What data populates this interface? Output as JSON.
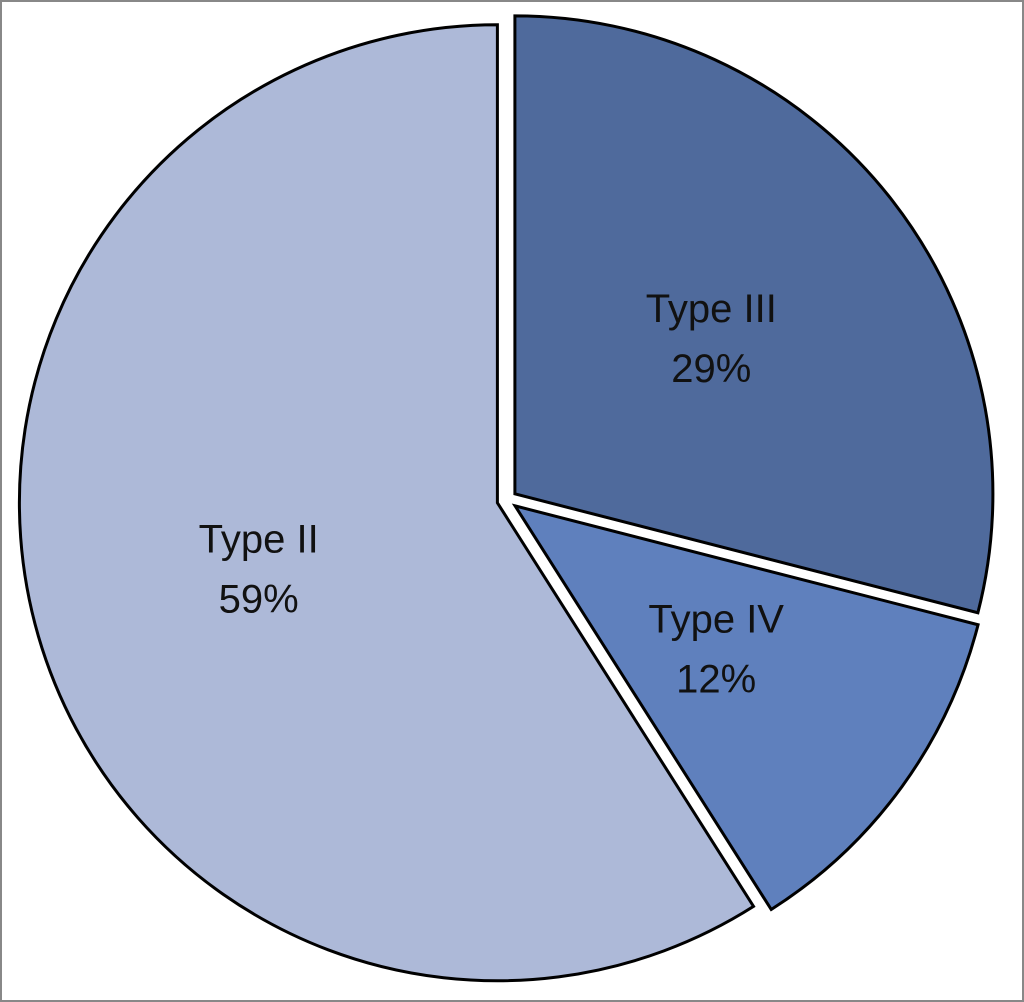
{
  "chart_data": {
    "type": "pie",
    "categories": [
      "Type III",
      "Type IV",
      "Type II"
    ],
    "values": [
      29,
      12,
      59
    ],
    "value_labels": [
      "29%",
      "12%",
      "59%"
    ],
    "colors": [
      "#4f6a9c",
      "#5f80bd",
      "#adb9d8"
    ]
  }
}
